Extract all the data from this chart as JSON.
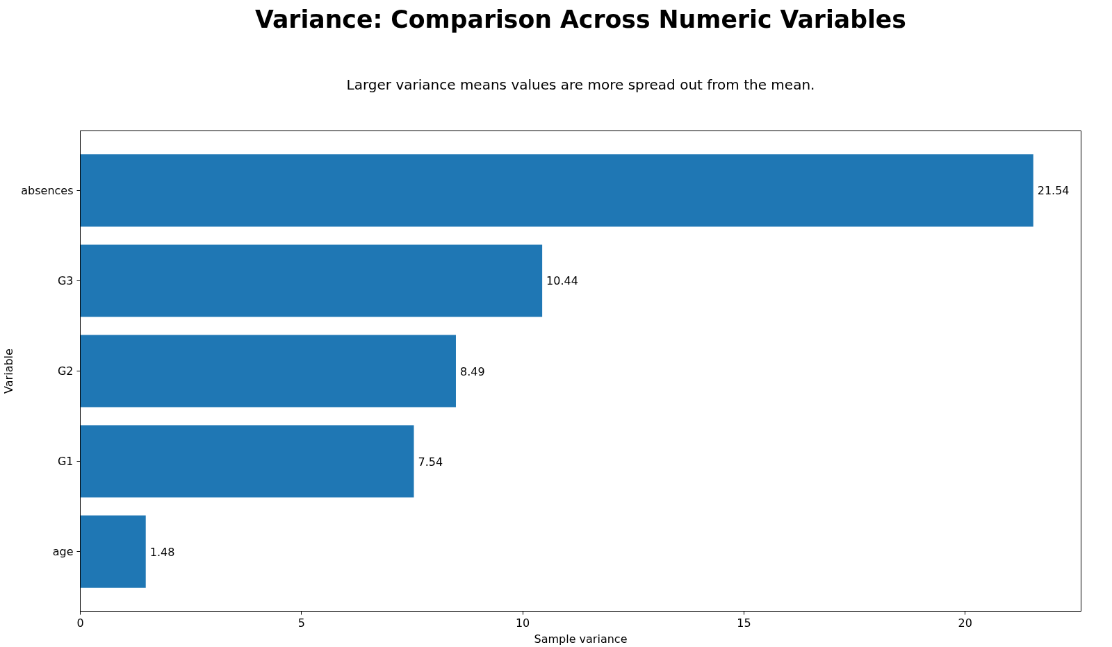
{
  "chart_data": {
    "type": "bar",
    "orientation": "horizontal",
    "title": "Variance: Comparison Across Numeric Variables",
    "subtitle": "Larger variance means values are more spread out from the mean.",
    "xlabel": "Sample variance",
    "ylabel": "Variable",
    "categories": [
      "absences",
      "G3",
      "G2",
      "G1",
      "age"
    ],
    "values": [
      21.54,
      10.44,
      8.49,
      7.54,
      1.48
    ],
    "color": "#1f77b4",
    "xlim": [
      0,
      22.62
    ],
    "xticks": [
      0,
      5,
      10,
      15,
      20
    ],
    "data_labels": true,
    "grid": false
  }
}
